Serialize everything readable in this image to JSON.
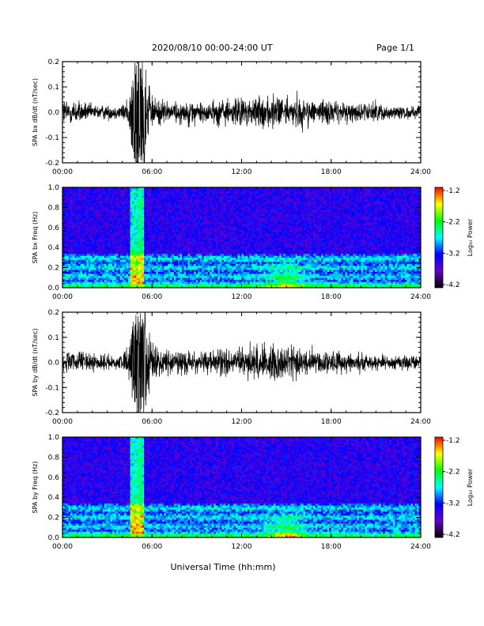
{
  "header": {
    "title": "2020/08/10  00:00-24:00 UT",
    "page": "Page 1/1"
  },
  "colorbar": {
    "label": "Log₁₀ Power",
    "ticks": [
      "-1.2",
      "-2.2",
      "-3.2",
      "-4.2"
    ],
    "colors": [
      "#ff0000",
      "#ffff00",
      "#00ff00",
      "#00ffff",
      "#0000ff",
      "#6600cc",
      "#000000"
    ]
  },
  "xlabel": "Universal Time (hh:mm)",
  "chart_data": [
    {
      "type": "line",
      "ylabel": "SPA bx dB/dt (nT/sec)",
      "xlim": [
        0,
        24
      ],
      "ylim": [
        -0.2,
        0.2
      ],
      "xticks": [
        "00:00",
        "06:00",
        "12:00",
        "18:00",
        "24:00"
      ],
      "yticks": [
        "-0.2",
        "-0.1",
        "0.0",
        "0.1",
        "0.2"
      ],
      "x": [
        0,
        1,
        2,
        3,
        4,
        4.5,
        5,
        5.5,
        6,
        7,
        8,
        9,
        10,
        11,
        12,
        13,
        14,
        15,
        16,
        17,
        18,
        19,
        20,
        21,
        22,
        23,
        24
      ],
      "amplitude": [
        0.06,
        0.05,
        0.03,
        0.03,
        0.03,
        0.08,
        0.2,
        0.2,
        0.06,
        0.05,
        0.05,
        0.05,
        0.05,
        0.06,
        0.06,
        0.06,
        0.07,
        0.07,
        0.06,
        0.05,
        0.05,
        0.04,
        0.04,
        0.04,
        0.03,
        0.03,
        0.03
      ],
      "color": "#000000"
    },
    {
      "type": "heatmap",
      "ylabel": "SPA bx Freq (Hz)",
      "xlim": [
        0,
        24
      ],
      "ylim": [
        0,
        1.0
      ],
      "xticks": [
        "00:00",
        "06:00",
        "12:00",
        "18:00",
        "24:00"
      ],
      "yticks": [
        "0.0",
        "0.2",
        "0.4",
        "0.6",
        "0.8",
        "1.0"
      ],
      "zlim": [
        -4.2,
        -1.2
      ],
      "event_window": [
        4.5,
        5.5
      ],
      "event_peak": [
        5.1,
        5.4
      ],
      "bump_center_hour": 15.0,
      "band_max_freq": 0.35
    },
    {
      "type": "line",
      "ylabel": "SPA by dB/dt (nT/sec)",
      "xlim": [
        0,
        24
      ],
      "ylim": [
        -0.2,
        0.2
      ],
      "xticks": [
        "00:00",
        "06:00",
        "12:00",
        "18:00",
        "24:00"
      ],
      "yticks": [
        "-0.2",
        "-0.1",
        "0.0",
        "0.1",
        "0.2"
      ],
      "x": [
        0,
        1,
        2,
        3,
        4,
        4.5,
        5,
        5.5,
        6,
        7,
        8,
        9,
        10,
        11,
        12,
        13,
        14,
        15,
        16,
        17,
        18,
        19,
        20,
        21,
        22,
        23,
        24
      ],
      "amplitude": [
        0.04,
        0.05,
        0.04,
        0.03,
        0.03,
        0.08,
        0.2,
        0.2,
        0.07,
        0.05,
        0.05,
        0.04,
        0.05,
        0.06,
        0.06,
        0.07,
        0.08,
        0.08,
        0.06,
        0.05,
        0.05,
        0.04,
        0.04,
        0.03,
        0.03,
        0.03,
        0.03
      ],
      "color": "#000000"
    },
    {
      "type": "heatmap",
      "ylabel": "SPA by Freq (Hz)",
      "xlim": [
        0,
        24
      ],
      "ylim": [
        0,
        1.0
      ],
      "xticks": [
        "00:00",
        "06:00",
        "12:00",
        "18:00",
        "24:00"
      ],
      "yticks": [
        "0.0",
        "0.2",
        "0.4",
        "0.6",
        "0.8",
        "1.0"
      ],
      "zlim": [
        -4.2,
        -1.2
      ],
      "event_window": [
        4.5,
        5.5
      ],
      "event_peak": [
        5.1,
        5.4
      ],
      "bump_center_hour": 15.0,
      "band_max_freq": 0.35
    }
  ]
}
